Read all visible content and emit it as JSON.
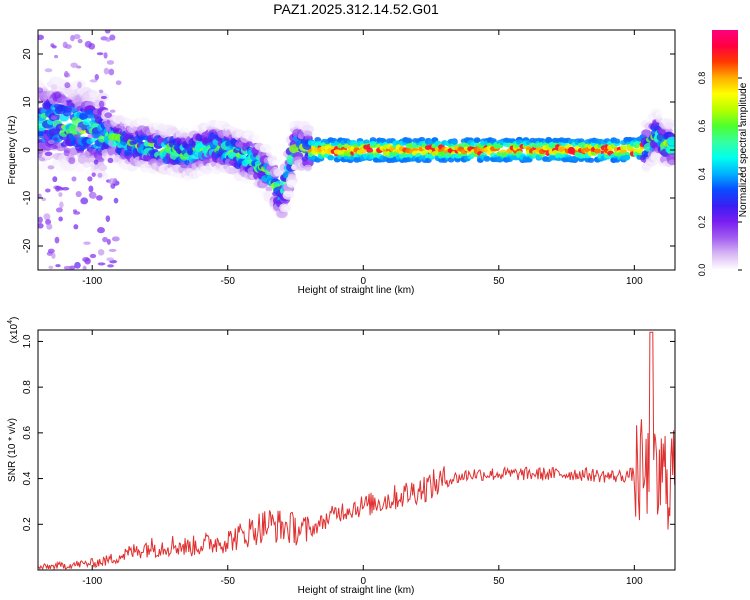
{
  "chart_data": [
    {
      "type": "heatmap",
      "title": "PAZ1.2025.312.14.52.G01",
      "xlabel": "Height of straight line (km)",
      "ylabel": "Frequency (Hz)",
      "xlim": [
        -120,
        115
      ],
      "ylim": [
        -25,
        25
      ],
      "xticks": [
        -100,
        -50,
        0,
        50,
        100
      ],
      "yticks": [
        -20,
        -10,
        0,
        10,
        20
      ],
      "colorbar": {
        "label": "Normalized spectral amplitude",
        "range": [
          0,
          1
        ],
        "ticks": [
          "0.0",
          "0.2",
          "0.4",
          "0.6",
          "0.8"
        ],
        "colors": [
          "#ffffff",
          "#d9b8f4",
          "#a25ef0",
          "#7a1ff0",
          "#3b1ef2",
          "#0a4bff",
          "#00b0ff",
          "#00ffee",
          "#35ff9f",
          "#4dff2e",
          "#b7ff00",
          "#ffff00",
          "#ffb000",
          "#ff3a00",
          "#ff0040",
          "#ff007f"
        ]
      },
      "ridge": {
        "x": [
          -120,
          -115,
          -110,
          -105,
          -100,
          -95,
          -90,
          -85,
          -80,
          -75,
          -70,
          -65,
          -60,
          -55,
          -50,
          -45,
          -40,
          -35,
          -30,
          -25,
          -20,
          -10,
          0,
          20,
          50,
          80,
          100,
          105,
          108,
          115
        ],
        "freq": [
          5,
          6,
          5,
          5,
          4,
          3,
          2,
          1,
          1,
          0,
          0,
          -1,
          0,
          1,
          0,
          -1,
          -2,
          -5,
          -10,
          1,
          0,
          0,
          0,
          0,
          0,
          0,
          0,
          1,
          3,
          0
        ]
      }
    },
    {
      "type": "line",
      "title": "",
      "xlabel": "Height of straight line (km)",
      "ylabel": "SNR (10 * v/v)",
      "scale_label": "(x10",
      "scale_exponent": "4",
      "xlim": [
        -120,
        115
      ],
      "ylim": [
        0,
        1.05
      ],
      "xticks": [
        -100,
        -50,
        0,
        50,
        100
      ],
      "yticks": [
        0.2,
        0.4,
        0.6,
        0.8,
        1.0
      ],
      "series": [
        {
          "name": "SNR",
          "color": "#e03030",
          "x": [
            -120,
            -110,
            -100,
            -95,
            -90,
            -85,
            -80,
            -75,
            -70,
            -65,
            -60,
            -55,
            -50,
            -45,
            -40,
            -35,
            -30,
            -25,
            -20,
            -15,
            -10,
            -5,
            0,
            10,
            20,
            30,
            40,
            50,
            60,
            70,
            80,
            90,
            95,
            100,
            102,
            104,
            106,
            108,
            110,
            112,
            115
          ],
          "values": [
            0.01,
            0.02,
            0.03,
            0.04,
            0.06,
            0.08,
            0.1,
            0.1,
            0.11,
            0.1,
            0.11,
            0.12,
            0.13,
            0.15,
            0.18,
            0.2,
            0.19,
            0.18,
            0.17,
            0.21,
            0.25,
            0.27,
            0.28,
            0.31,
            0.35,
            0.39,
            0.42,
            0.42,
            0.42,
            0.42,
            0.42,
            0.41,
            0.41,
            0.42,
            0.42,
            0.4,
            0.38,
            0.36,
            0.4,
            0.41,
            0.45
          ]
        }
      ]
    }
  ]
}
